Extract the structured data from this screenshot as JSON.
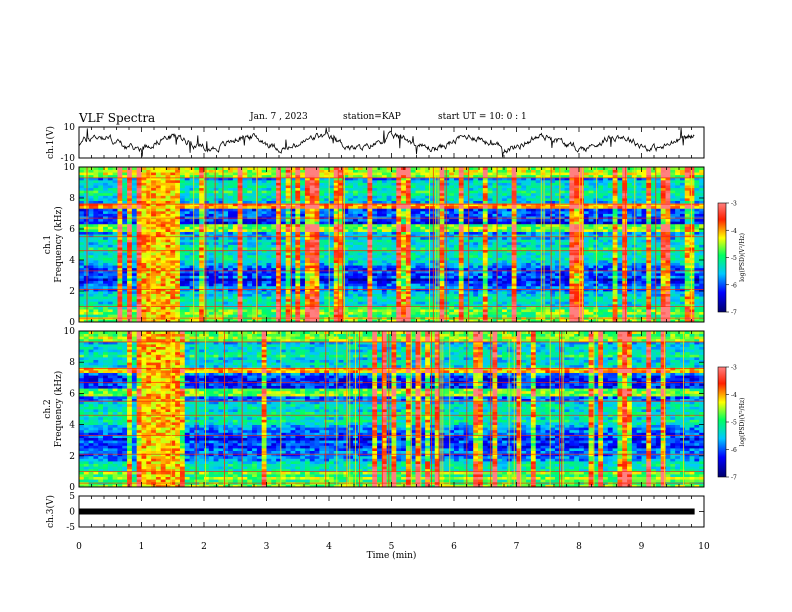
{
  "header": {
    "title": "VLF Spectra",
    "date": "Jan. 7 , 2023",
    "station": "station=KAP",
    "start_ut": "start UT =  10: 0 : 1"
  },
  "chart_data": [
    {
      "type": "line",
      "ylabel": "ch.1(V)",
      "ylim": [
        -10,
        10
      ],
      "yticks": [
        -10,
        10
      ],
      "xlim": [
        0,
        10
      ],
      "note": "noisy voltage trace around 0 V with spikes",
      "color": "#000000"
    },
    {
      "type": "heatmap",
      "ylabel": "ch.1\nFrequency (kHz)",
      "ylim": [
        0,
        10
      ],
      "yticks": [
        0,
        2,
        4,
        6,
        8,
        10
      ],
      "xlim": [
        0,
        10
      ],
      "colorbar": {
        "label": "log(PSD)(V²/Hz)",
        "range": [
          -7,
          -3
        ],
        "ticks": [
          -7,
          -6,
          -5,
          -4,
          -3
        ]
      },
      "burst_interval_min": [
        1.0,
        1.55
      ]
    },
    {
      "type": "heatmap",
      "ylabel": "ch.2\nFrequency (kHz)",
      "ylim": [
        0,
        10
      ],
      "yticks": [
        0,
        2,
        4,
        6,
        8,
        10
      ],
      "xlim": [
        0,
        10
      ],
      "colorbar": {
        "label": "log(PSD)(V²/Hz)",
        "range": [
          -7,
          -3
        ],
        "ticks": [
          -7,
          -6,
          -5,
          -4,
          -3
        ]
      },
      "burst_interval_min": [
        1.0,
        1.55
      ]
    },
    {
      "type": "line",
      "ylabel": "ch.3(V)",
      "ylim": [
        -5,
        5
      ],
      "yticks": [
        -5,
        0,
        5
      ],
      "xlim": [
        0,
        10
      ],
      "xticks": [
        0,
        1,
        2,
        3,
        4,
        5,
        6,
        7,
        8,
        9,
        10
      ],
      "xlabel": "Time (min)",
      "constant_value": 0,
      "color": "#000000"
    }
  ],
  "colors": {
    "low": "#0000b4",
    "mid": "#00e000",
    "high": "#ff0000",
    "axis": "#000000"
  }
}
